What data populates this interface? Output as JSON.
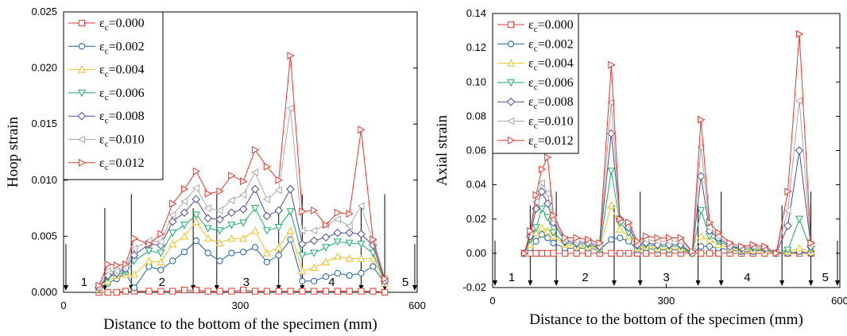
{
  "chart_data": [
    {
      "type": "line",
      "xlabel": "Distance to the bottom of the specimen (mm)",
      "ylabel": "Hoop strain",
      "xlim": [
        0,
        600
      ],
      "ylim": [
        0,
        0.025
      ],
      "x_ticks": [
        "0",
        "300",
        "600"
      ],
      "y_ticks": [
        "0.000",
        "0.005",
        "0.010",
        "0.015",
        "0.020",
        "0.025"
      ],
      "legend_position": "top-left",
      "regions": [
        {
          "label": "1",
          "x": 35
        },
        {
          "label": "2",
          "x": 167
        },
        {
          "label": "3",
          "x": 310
        },
        {
          "label": "4",
          "x": 455
        },
        {
          "label": "5",
          "x": 580
        }
      ],
      "dividers": [
        0,
        70,
        115,
        220,
        260,
        365,
        405,
        505,
        545,
        600
      ],
      "x": [
        60,
        75,
        90,
        105,
        120,
        145,
        165,
        185,
        205,
        225,
        245,
        265,
        285,
        305,
        325,
        345,
        365,
        385,
        405,
        425,
        445,
        465,
        485,
        505,
        525,
        545
      ],
      "series": [
        {
          "name": "ε<sub>c</sub>=0.000",
          "marker": "square",
          "color": "#e8352d",
          "values": [
            0,
            0,
            0,
            0.0001,
            0.0001,
            0.0001,
            0.0001,
            0.0001,
            0.0002,
            0.0002,
            0.0001,
            0.0001,
            0.0001,
            0.0002,
            0.0001,
            0.0001,
            0.0001,
            0.0001,
            0.0001,
            0.0001,
            0.0001,
            0.0001,
            0.0001,
            0.0001,
            0.0001,
            0
          ]
        },
        {
          "name": "ε<sub>c</sub>=0.002",
          "marker": "circle",
          "color": "#1f5f9e",
          "values": [
            0.0002,
            0.0008,
            0.0012,
            0.0017,
            0.0004,
            0.0023,
            0.002,
            0.0028,
            0.0036,
            0.0046,
            0.0035,
            0.0028,
            0.0035,
            0.0036,
            0.004,
            0.0027,
            0.0033,
            0.0047,
            0.001,
            0.001,
            0.0014,
            0.0017,
            0.0015,
            0.0017,
            0.0023,
            0.0008
          ]
        },
        {
          "name": "ε<sub>c</sub>=0.004",
          "marker": "triangle-up",
          "color": "#f0c020",
          "values": [
            0.0003,
            0.001,
            0.0015,
            0.0016,
            0.0016,
            0.0028,
            0.0027,
            0.0043,
            0.005,
            0.0063,
            0.0048,
            0.0044,
            0.0048,
            0.0048,
            0.0055,
            0.0035,
            0.004,
            0.0055,
            0.0019,
            0.0022,
            0.0027,
            0.0032,
            0.003,
            0.003,
            0.003,
            0.0008
          ]
        },
        {
          "name": "ε<sub>c</sub>=0.006",
          "marker": "triangle-down",
          "color": "#1aaa6a",
          "values": [
            0.0004,
            0.0013,
            0.0016,
            0.0018,
            0.0028,
            0.0037,
            0.0035,
            0.0053,
            0.006,
            0.0069,
            0.0057,
            0.0055,
            0.006,
            0.0062,
            0.0075,
            0.0055,
            0.0058,
            0.0072,
            0.0033,
            0.0035,
            0.004,
            0.0045,
            0.0044,
            0.0043,
            0.0035,
            0.001
          ]
        },
        {
          "name": "ε<sub>c</sub>=0.008",
          "marker": "diamond",
          "color": "#4b4a9a",
          "values": [
            0.0004,
            0.0015,
            0.0017,
            0.0021,
            0.0033,
            0.0043,
            0.0042,
            0.0063,
            0.0071,
            0.0083,
            0.0066,
            0.0065,
            0.0071,
            0.0074,
            0.0092,
            0.0068,
            0.0073,
            0.0092,
            0.0043,
            0.0046,
            0.0049,
            0.0053,
            0.0053,
            0.0052,
            0.0042,
            0.001
          ]
        },
        {
          "name": "ε<sub>c</sub>=0.010",
          "marker": "triangle-left",
          "color": "#a8a8a8",
          "values": [
            0.0005,
            0.0019,
            0.0019,
            0.0022,
            0.0039,
            0.0046,
            0.0045,
            0.0069,
            0.0081,
            0.0093,
            0.0075,
            0.0073,
            0.0082,
            0.0087,
            0.0107,
            0.0083,
            0.0091,
            0.0164,
            0.0055,
            0.0055,
            0.006,
            0.0065,
            0.0059,
            0.0077,
            0.0045,
            0.0012
          ]
        },
        {
          "name": "ε<sub>c</sub>=0.012",
          "marker": "triangle-right",
          "color": "#e8352d",
          "values": [
            0.0006,
            0.0025,
            0.0024,
            0.0025,
            0.0048,
            0.0043,
            0.0052,
            0.0079,
            0.0092,
            0.0108,
            0.0088,
            0.009,
            0.0104,
            0.0099,
            0.0127,
            0.0112,
            0.01,
            0.0211,
            0.0072,
            0.0073,
            0.006,
            0.0071,
            0.007,
            0.0145,
            0.0047,
            0.0012
          ]
        }
      ]
    },
    {
      "type": "line",
      "xlabel": "Distance to the bottom of the specimen (mm)",
      "ylabel": "Axial strain",
      "xlim": [
        0,
        600
      ],
      "ylim": [
        -0.02,
        0.14
      ],
      "x_ticks": [
        "0",
        "300",
        "600"
      ],
      "y_ticks": [
        "-0.02",
        "0.00",
        "0.02",
        "0.04",
        "0.06",
        "0.08",
        "0.10",
        "0.12",
        "0.14"
      ],
      "legend_position": "top-left",
      "regions": [
        {
          "label": "1",
          "x": 33
        },
        {
          "label": "2",
          "x": 160
        },
        {
          "label": "3",
          "x": 300
        },
        {
          "label": "4",
          "x": 440
        },
        {
          "label": "5",
          "x": 575
        }
      ],
      "dividers": [
        0,
        65,
        110,
        210,
        255,
        355,
        395,
        500,
        550,
        600
      ],
      "x": [
        55,
        65,
        75,
        85,
        95,
        105,
        125,
        145,
        165,
        185,
        205,
        220,
        235,
        250,
        265,
        285,
        305,
        325,
        345,
        360,
        375,
        390,
        410,
        430,
        450,
        470,
        490,
        510,
        530,
        550
      ],
      "series": [
        {
          "name": "ε<sub>c</sub>=0.000",
          "marker": "square",
          "color": "#e8352d",
          "values": [
            0,
            0,
            0,
            0,
            0,
            0,
            0,
            0,
            0,
            0,
            0,
            0,
            0,
            0,
            0,
            0,
            0,
            0,
            0,
            0,
            0,
            0,
            0,
            0,
            0,
            0,
            0,
            0,
            0,
            0
          ]
        },
        {
          "name": "ε<sub>c</sub>=0.002",
          "marker": "circle",
          "color": "#1f5f9e",
          "values": [
            0,
            0.003,
            0.007,
            0.011,
            0.009,
            0.006,
            0.003,
            0.003,
            0.003,
            0.002,
            0.008,
            0.009,
            0.007,
            0.002,
            0.003,
            0.002,
            0.002,
            0.002,
            0,
            0.004,
            0.004,
            0.003,
            0.002,
            0.001,
            0.001,
            0.002,
            0,
            0,
            0.001,
            0
          ]
        },
        {
          "name": "ε<sub>c</sub>=0.004",
          "marker": "triangle-up",
          "color": "#f0c020",
          "values": [
            0,
            0.005,
            0.012,
            0.015,
            0.013,
            0.01,
            0.005,
            0.004,
            0.004,
            0.003,
            0.028,
            0.014,
            0.01,
            0.003,
            0.004,
            0.003,
            0.003,
            0.003,
            0,
            0.01,
            0.008,
            0.005,
            0.003,
            0.002,
            0.002,
            0.002,
            0,
            0.001,
            0.003,
            0.001
          ]
        },
        {
          "name": "ε<sub>c</sub>=0.006",
          "marker": "triangle-down",
          "color": "#1aaa6a",
          "values": [
            0,
            0.008,
            0.015,
            0.026,
            0.021,
            0.012,
            0.006,
            0.005,
            0.005,
            0.003,
            0.048,
            0.018,
            0.012,
            0.004,
            0.005,
            0.004,
            0.004,
            0.004,
            0,
            0.025,
            0.01,
            0.007,
            0.004,
            0.002,
            0.003,
            0.002,
            0,
            0.002,
            0.02,
            0.002
          ]
        },
        {
          "name": "ε<sub>c</sub>=0.008",
          "marker": "diamond",
          "color": "#4b4a9a",
          "values": [
            0,
            0.01,
            0.026,
            0.036,
            0.029,
            0.018,
            0.007,
            0.006,
            0.006,
            0.004,
            0.07,
            0.02,
            0.015,
            0.005,
            0.006,
            0.005,
            0.005,
            0.005,
            0,
            0.045,
            0.013,
            0.009,
            0.004,
            0.003,
            0.004,
            0.003,
            0,
            0.016,
            0.06,
            0.004
          ]
        },
        {
          "name": "ε<sub>c</sub>=0.010",
          "marker": "triangle-left",
          "color": "#a8a8a8",
          "values": [
            0,
            0.012,
            0.03,
            0.041,
            0.035,
            0.02,
            0.008,
            0.007,
            0.007,
            0.005,
            0.088,
            0.019,
            0.016,
            0.006,
            0.008,
            0.007,
            0.007,
            0.007,
            0.001,
            0.062,
            0.015,
            0.01,
            0.005,
            0.003,
            0.004,
            0.003,
            0,
            0.025,
            0.089,
            0.005
          ]
        },
        {
          "name": "ε<sub>c</sub>=0.012",
          "marker": "triangle-right",
          "color": "#e8352d",
          "values": [
            0,
            0.013,
            0.034,
            0.049,
            0.056,
            0.022,
            0.009,
            0.009,
            0.008,
            0.006,
            0.11,
            0.02,
            0.018,
            0.007,
            0.01,
            0.009,
            0.009,
            0.009,
            0.001,
            0.078,
            0.018,
            0.012,
            0.006,
            0.004,
            0.005,
            0.004,
            0,
            0.036,
            0.128,
            0.006
          ]
        }
      ]
    }
  ]
}
